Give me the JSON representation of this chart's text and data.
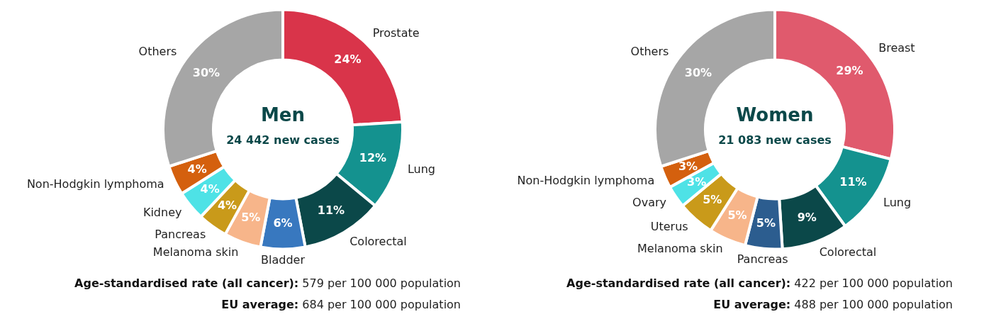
{
  "chart_data": [
    {
      "type": "donut",
      "title": "Men",
      "subtitle": "24 442 new cases",
      "categories": [
        "Prostate",
        "Lung",
        "Colorectal",
        "Bladder",
        "Melanoma skin",
        "Pancreas",
        "Kidney",
        "Non-Hodgkin lymphoma",
        "Others"
      ],
      "values": [
        24,
        12,
        11,
        6,
        5,
        4,
        4,
        4,
        30
      ],
      "value_labels": [
        "24%",
        "12%",
        "11%",
        "6%",
        "5%",
        "4%",
        "4%",
        "4%",
        "30%"
      ],
      "colors": [
        "#d9344a",
        "#14928f",
        "#0b4849",
        "#3878bf",
        "#f7b58a",
        "#c99a1a",
        "#4ee2e6",
        "#d4600e",
        "#a6a6a6"
      ],
      "annotations": [
        "Age-standardised rate (all cancer): 579 per 100 000 population",
        "EU average: 684 per 100 000 population"
      ]
    },
    {
      "type": "donut",
      "title": "Women",
      "subtitle": "21 083 new cases",
      "categories": [
        "Breast",
        "Lung",
        "Colorectal",
        "Pancreas",
        "Melanoma skin",
        "Uterus",
        "Ovary",
        "Non-Hodgkin lymphoma",
        "Others"
      ],
      "values": [
        29,
        11,
        9,
        5,
        5,
        5,
        3,
        3,
        30
      ],
      "value_labels": [
        "29%",
        "11%",
        "9%",
        "5%",
        "5%",
        "5%",
        "3%",
        "3%",
        "30%"
      ],
      "colors": [
        "#e05a6d",
        "#14928f",
        "#0b4849",
        "#2c5d8f",
        "#f7b58a",
        "#c99a1a",
        "#4ee2e6",
        "#d4600e",
        "#a6a6a6"
      ],
      "annotations": [
        "Age-standardised rate (all cancer): 422 per 100 000 population",
        "EU average: 488 per 100 000 population"
      ]
    }
  ]
}
